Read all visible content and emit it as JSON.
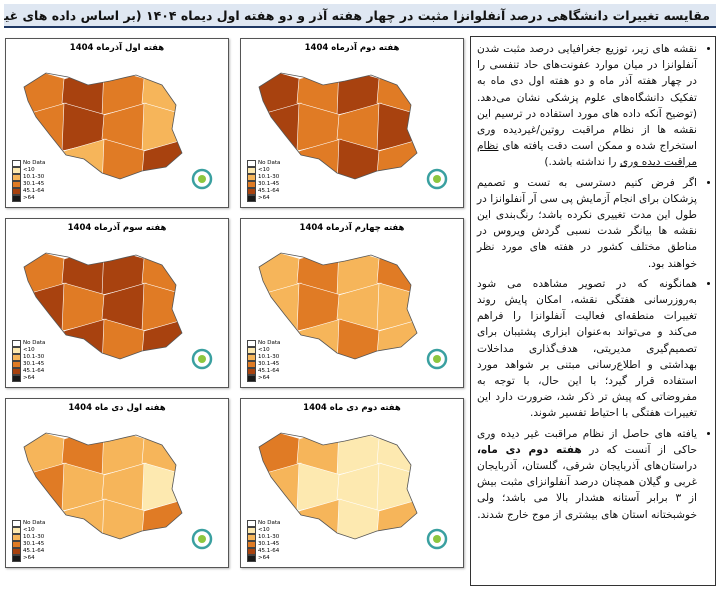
{
  "header": {
    "title": "مقایسه تغییرات دانشگاهی درصد آنفلوانزا مثبت در چهار هفته آذر و دو هفته اول دیماه ۱۴۰۴ (بر اساس داده های غیردیده وری آزمایشگاهی)"
  },
  "legend": {
    "items": [
      "No Data",
      "<10",
      "10.1-30",
      "30.1-45",
      "45.1-64",
      ">64"
    ]
  },
  "maps": [
    {
      "title": "هفته اول آذرماه 1404"
    },
    {
      "title": "هفته دوم آذرماه 1404"
    },
    {
      "title": "هفته سوم آذرماه 1404"
    },
    {
      "title": "هفته چهارم آذرماه 1404"
    },
    {
      "title": "هفته اول دی ماه 1404"
    },
    {
      "title": "هفته دوم دی ماه 1404"
    }
  ],
  "paragraphs": [
    {
      "parts": [
        "نقشه های زیر، توزیع جغرافیایی درصد مثبت شدن آنفلوانزا در میان موارد عفونت‌های حاد تنفسی را در چهار هفته آذر ماه و دو هفته اول دی ماه به تفکیک دانشگاه‌های علوم پزشکی نشان می‌دهد. (توضیح آنکه داده های مورد استفاده در ترسیم این نقشه ها از نظام مراقبت روتین/غیردیده وری استخراج شده و ممکن است دقت یافته های ",
        "نظام مراقبت دیده وری",
        " را نداشته باشد.)"
      ]
    },
    {
      "parts": [
        "اگر فرض کنیم دسترسی به تست و تصمیم پزشکان برای انجام آزمایش پی سی آر آنفلوانزا در طول این مدت تغییری نکرده باشد؛ رنگ‌بندی این نقشه ها بیانگر شدت نسبی گردش ویروس در مناطق مختلف کشور در هفته های مورد نظر خواهند بود."
      ]
    },
    {
      "parts": [
        "همانگونه که در تصویر مشاهده می شود به‌روزرسانی هفتگی نقشه، امکان پایش روند تغییرات منطقه‌ای فعالیت آنفلوانزا را فراهم می‌کند و می‌تواند به‌عنوان ابزاری پشتیبان برای تصمیم‌گیری مدیریتی، هدف‌گذاری مداخلات بهداشتی و اطلاع‌رسانی مبتنی بر شواهد مورد استفاده قرار گیرد؛ با این حال، با توجه به مفروضاتی که پیش تر ذکر شد، ضرورت دارد این تغییرات هفتگی با احتیاط تفسیر شوند."
      ]
    },
    {
      "parts": [
        "یافته های حاصل از نظام مراقبت غیر دیده وری حاکی از آنست که در ",
        "هفته دوم دی ماه،",
        " دراستان‌های آذربایجان شرقی، گلستان، آذربایجان غربی و گیلان همچنان درصد آنفلوانزای مثبت بیش از ۳ برابر آستانه هشدار بالا می باشد؛ ولی خوشبختانه استان های بیشتری از موج خارج شدند."
      ]
    }
  ]
}
